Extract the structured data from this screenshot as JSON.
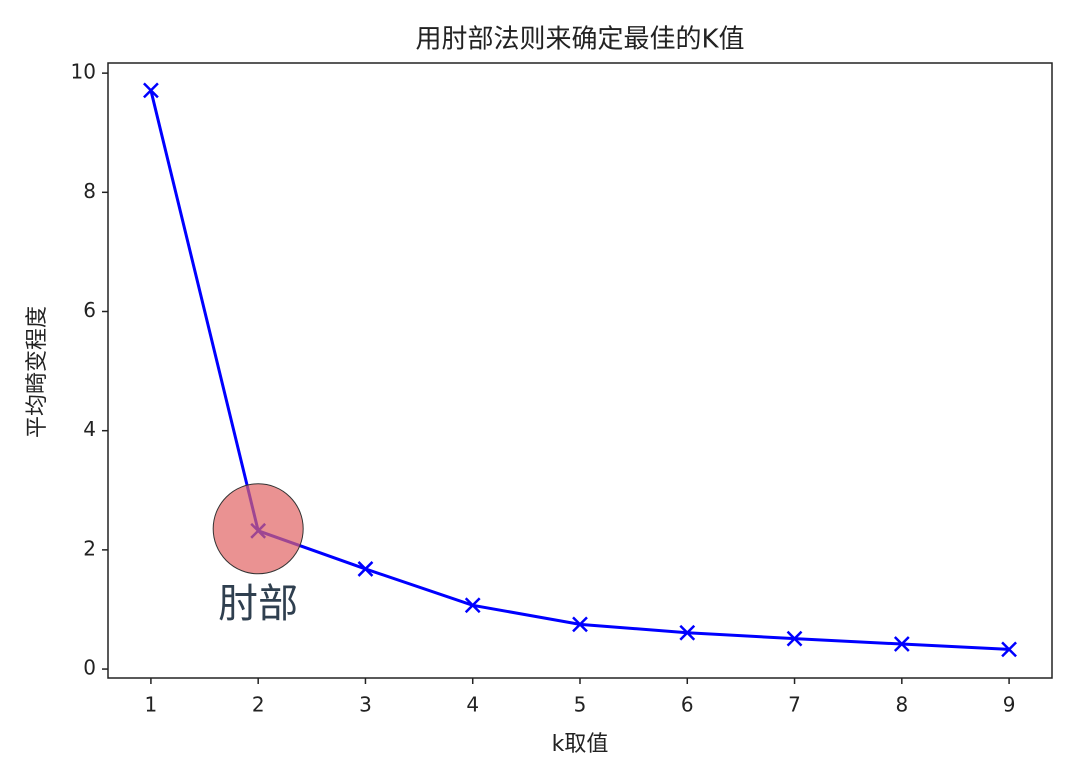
{
  "chart_data": {
    "type": "line",
    "title": "用肘部法则来确定最佳的K值",
    "x_label": "k取值",
    "y_label": "平均畸变程度",
    "x": [
      1,
      2,
      3,
      4,
      5,
      6,
      7,
      8,
      9
    ],
    "series": [
      {
        "color": "#0000ff",
        "values": [
          9.71,
          2.32,
          1.68,
          1.07,
          0.75,
          0.61,
          0.51,
          0.42,
          0.33
        ]
      }
    ],
    "xlim": [
      0.6,
      9.4
    ],
    "xticks": [
      1,
      2,
      3,
      4,
      5,
      6,
      7,
      8,
      9
    ],
    "ylim": [
      -0.15,
      10.17
    ],
    "yticks": [
      0,
      2,
      4,
      6,
      8,
      10
    ],
    "annotation": "肘部"
  }
}
